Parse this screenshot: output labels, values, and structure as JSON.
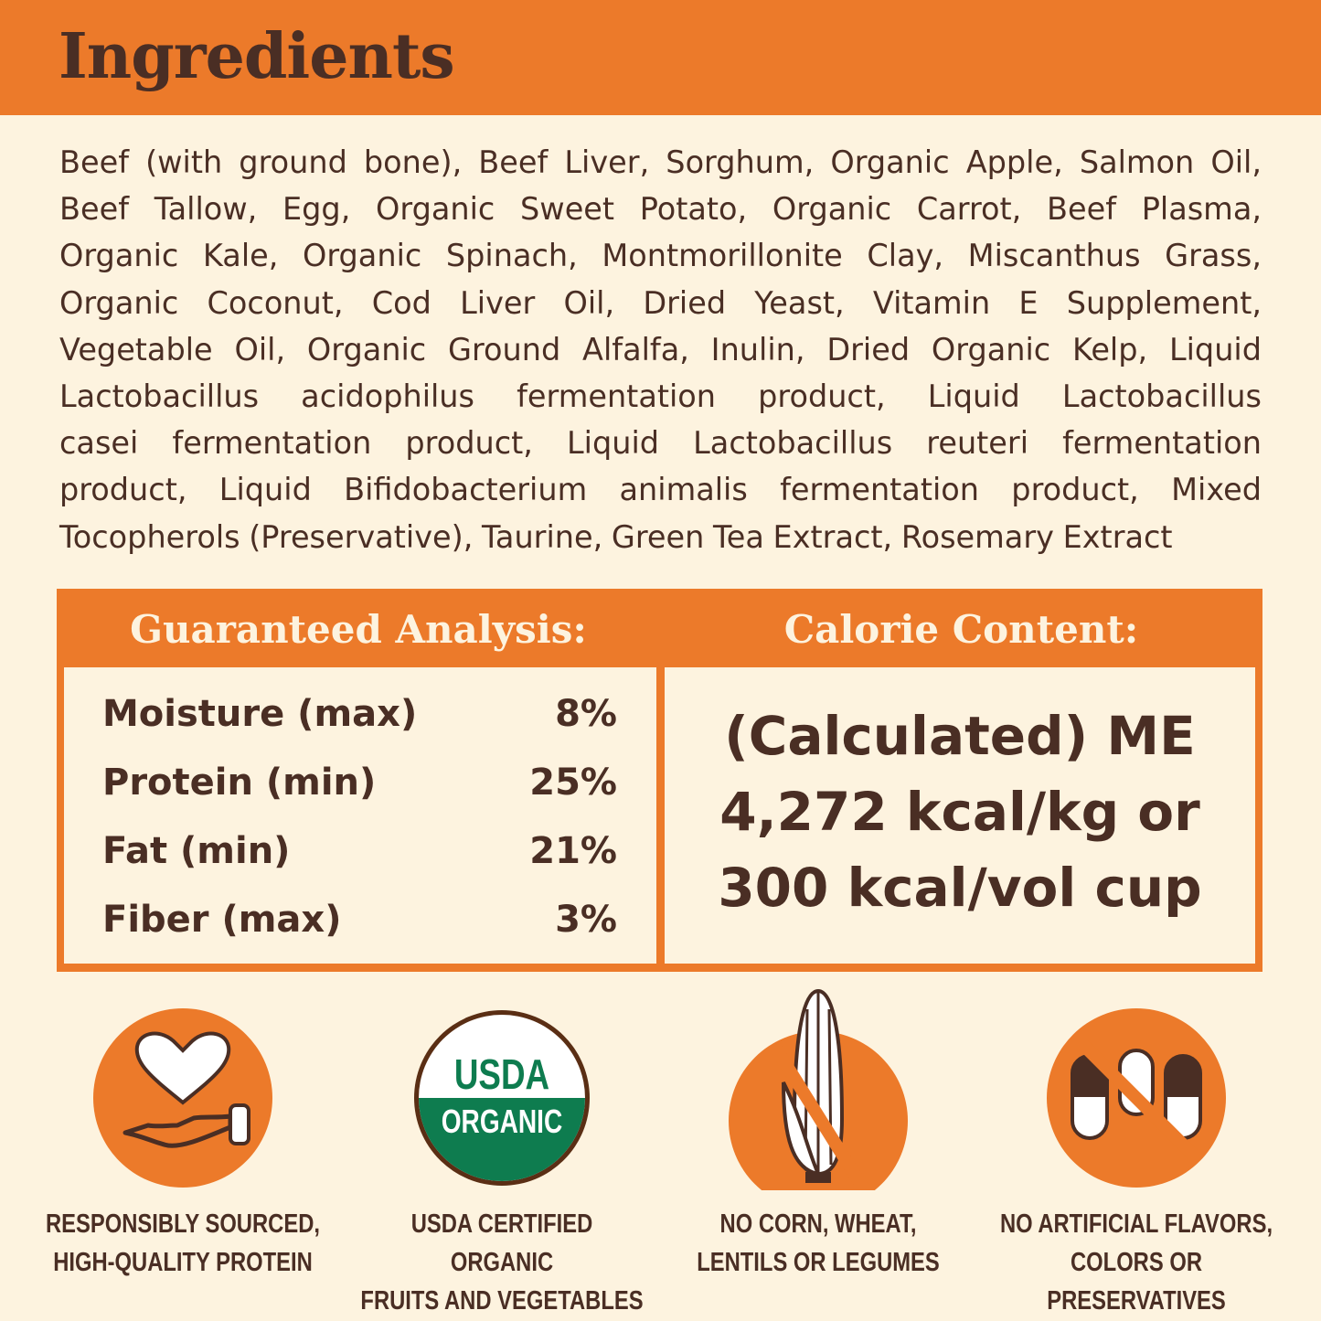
{
  "header": {
    "title": "Ingredients"
  },
  "ingredients": {
    "lines": [
      "Beef (with ground bone), Beef Liver, Sorghum, Organic Apple, Salmon Oil,",
      "Beef Tallow, Egg, Organic Sweet Potato, Organic Carrot, Beef Plasma,",
      "Organic Kale, Organic Spinach, Montmorillonite Clay,  Miscanthus Grass,",
      "Organic Coconut, Cod Liver Oil, Dried Yeast, Vitamin E Supplement,",
      "Vegetable Oil, Organic Ground Alfalfa, Inulin, Dried Organic Kelp, Liquid",
      "Lactobacillus acidophilus fermentation product, Liquid Lactobacillus",
      "casei fermentation product, Liquid Lactobacillus reuteri fermentation",
      "product, Liquid Bifidobacterium animalis fermentation product, Mixed",
      "Tocopherols (Preservative), Taurine, Green Tea Extract, Rosemary Extract"
    ]
  },
  "analysis": {
    "heading": "Guaranteed Analysis:",
    "rows": [
      {
        "label": "Moisture (max)",
        "value": "8%"
      },
      {
        "label": "Protein (min)",
        "value": "25%"
      },
      {
        "label": "Fat (min)",
        "value": "21%"
      },
      {
        "label": "Fiber (max)",
        "value": "3%"
      }
    ]
  },
  "calorie": {
    "heading": "Calorie Content:",
    "lines": [
      "(Calculated) ME",
      "4,272 kcal/kg or",
      "300 kcal/vol cup"
    ]
  },
  "badges": [
    {
      "icon": "heart-hand-icon",
      "lines": [
        "RESPONSIBLY SOURCED,",
        "HIGH-QUALITY PROTEIN"
      ]
    },
    {
      "icon": "usda-organic-seal",
      "seal_text": [
        "USDA",
        "ORGANIC"
      ],
      "lines": [
        "USDA CERTIFIED ORGANIC",
        "FRUITS AND VEGETABLES"
      ]
    },
    {
      "icon": "no-corn-icon",
      "lines": [
        "NO CORN, WHEAT,",
        "LENTILS OR LEGUMES"
      ]
    },
    {
      "icon": "no-capsules-icon",
      "lines": [
        "NO ARTIFICIAL FLAVORS,",
        "COLORS OR PRESERVATIVES"
      ]
    }
  ],
  "colors": {
    "orange": "#ec7a2a",
    "cream": "#fdf3df",
    "brown": "#4a2e24",
    "usda_green": "#0e7c4f"
  }
}
